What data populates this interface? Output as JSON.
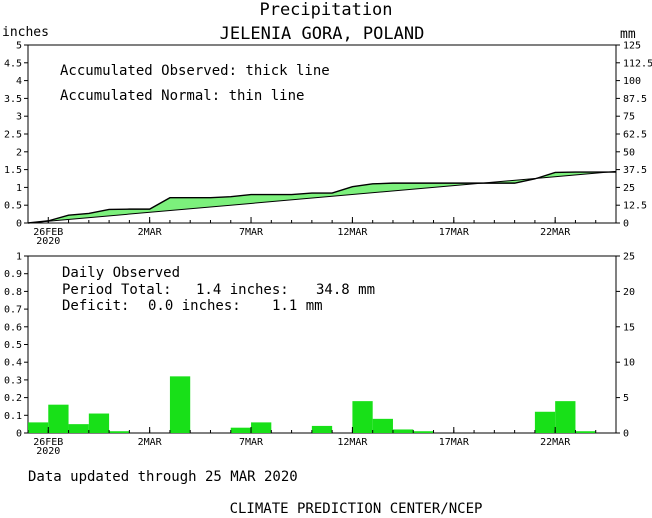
{
  "title": "Precipitation",
  "subtitle": "JELENIA GORA, POLAND",
  "unit_left": "inches",
  "unit_right": "mm",
  "top_panel": {
    "note_observed": "Accumulated Observed: thick line",
    "note_normal": "Accumulated Normal: thin line"
  },
  "bottom_panel": {
    "heading": "Daily Observed",
    "period_label": "Period Total:",
    "period_inches": "1.4 inches:",
    "period_mm": "34.8 mm",
    "deficit_label": "Deficit:",
    "deficit_inches": "0.0 inches:",
    "deficit_mm": "1.1 mm"
  },
  "updated_text": "Data updated through 25 MAR 2020",
  "footer": "CLIMATE PREDICTION CENTER/NCEP",
  "colors": {
    "fill": "#7cf07c",
    "bar": "#18e018",
    "line": "#000000"
  },
  "chart_data": [
    {
      "type": "line",
      "x_range_days": [
        0,
        29
      ],
      "ylim": [
        0,
        5
      ],
      "yticks_left": [
        "0",
        "0.5",
        "1",
        "1.5",
        "2",
        "2.5",
        "3",
        "3.5",
        "4",
        "4.5",
        "5"
      ],
      "yticks_right": [
        "0",
        "12.5",
        "25",
        "37.5",
        "50",
        "62.5",
        "75",
        "87.5",
        "100",
        "112.5",
        "125"
      ],
      "xticks": [
        {
          "day": 1,
          "label": "26FEB",
          "sub": "2020"
        },
        {
          "day": 6,
          "label": "2MAR"
        },
        {
          "day": 11,
          "label": "7MAR"
        },
        {
          "day": 16,
          "label": "12MAR"
        },
        {
          "day": 21,
          "label": "17MAR"
        },
        {
          "day": 26,
          "label": "22MAR"
        }
      ],
      "series": [
        {
          "role": "observed",
          "x": [
            0,
            1,
            2,
            3,
            4,
            5,
            6,
            7,
            8,
            9,
            10,
            11,
            12,
            13,
            14,
            15,
            16,
            17,
            18,
            19,
            20,
            21,
            22,
            23,
            24,
            25,
            26,
            27,
            28,
            29
          ],
          "values": [
            0.0,
            0.06,
            0.22,
            0.27,
            0.38,
            0.39,
            0.39,
            0.71,
            0.71,
            0.71,
            0.74,
            0.8,
            0.8,
            0.8,
            0.84,
            0.84,
            1.02,
            1.1,
            1.12,
            1.12,
            1.12,
            1.12,
            1.12,
            1.12,
            1.12,
            1.24,
            1.42,
            1.43,
            1.43,
            1.43
          ]
        },
        {
          "role": "normal",
          "x": [
            0,
            29
          ],
          "values": [
            0.0,
            1.45
          ]
        }
      ]
    },
    {
      "type": "bar",
      "x_range_days": [
        0,
        29
      ],
      "ylim": [
        0,
        1
      ],
      "yticks_left": [
        "0",
        "0.1",
        "0.2",
        "0.3",
        "0.4",
        "0.5",
        "0.6",
        "0.7",
        "0.8",
        "0.9",
        "1"
      ],
      "yticks_right": [
        "0",
        "5",
        "10",
        "15",
        "20",
        "25"
      ],
      "xticks": [
        {
          "day": 1,
          "label": "26FEB",
          "sub": "2020"
        },
        {
          "day": 6,
          "label": "2MAR"
        },
        {
          "day": 11,
          "label": "7MAR"
        },
        {
          "day": 16,
          "label": "12MAR"
        },
        {
          "day": 21,
          "label": "17MAR"
        },
        {
          "day": 26,
          "label": "22MAR"
        }
      ],
      "values": [
        0.06,
        0.16,
        0.05,
        0.11,
        0.01,
        0.0,
        0.0,
        0.32,
        0.0,
        0.0,
        0.03,
        0.06,
        0.0,
        0.0,
        0.04,
        0.0,
        0.18,
        0.08,
        0.02,
        0.01,
        0.0,
        0.0,
        0.0,
        0.0,
        0.0,
        0.12,
        0.18,
        0.01,
        0.0
      ]
    }
  ]
}
